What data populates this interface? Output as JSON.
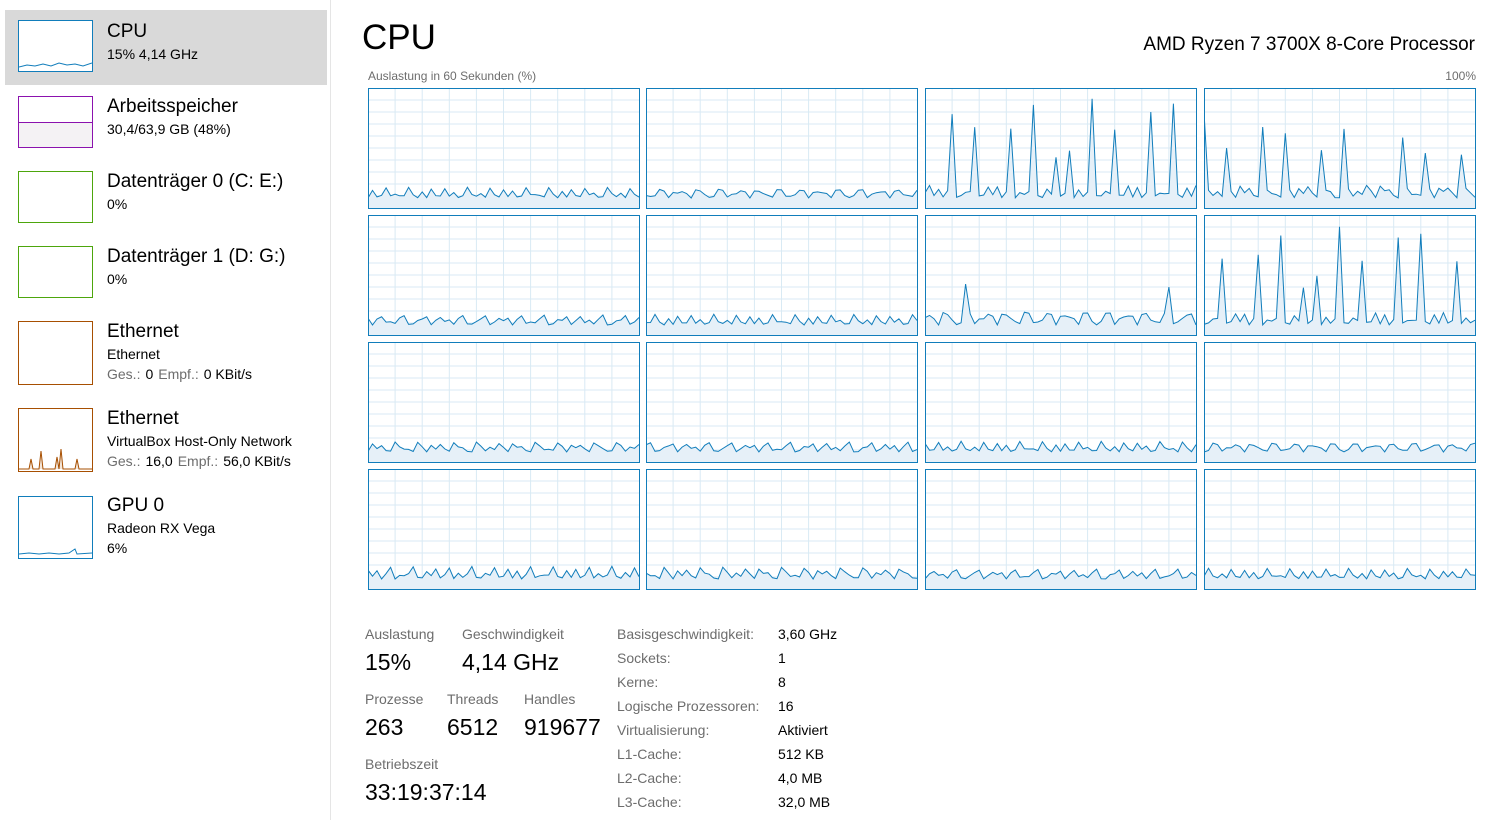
{
  "sidebar": [
    {
      "title": "CPU",
      "subtitle": "15% 4,14 GHz"
    },
    {
      "title": "Arbeitsspeicher",
      "subtitle": "30,4/63,9 GB (48%)"
    },
    {
      "title": "Datenträger 0 (C: E:)",
      "subtitle": "0%"
    },
    {
      "title": "Datenträger 1 (D: G:)",
      "subtitle": "0%"
    },
    {
      "title": "Ethernet",
      "subtitle": "Ethernet",
      "detail": [
        "Ges.:",
        "0",
        "Empf.:",
        "0 KBit/s"
      ]
    },
    {
      "title": "Ethernet",
      "subtitle": "VirtualBox Host-Only Network",
      "detail": [
        "Ges.:",
        "16,0",
        "Empf.:",
        "56,0 KBit/s"
      ]
    },
    {
      "title": "GPU 0",
      "subtitle": "Radeon RX Vega",
      "detail": [
        "6%"
      ]
    }
  ],
  "header": {
    "title": "CPU",
    "processor": "AMD Ryzen 7 3700X 8-Core Processor",
    "graph_label": "Auslastung in 60 Sekunden (%)",
    "graph_max": "100%"
  },
  "stats": [
    {
      "label": "Auslastung",
      "value": "15%"
    },
    {
      "label": "Geschwindigkeit",
      "value": "4,14 GHz"
    },
    {
      "label": "Prozesse",
      "value": "263"
    },
    {
      "label": "Threads",
      "value": "6512"
    },
    {
      "label": "Handles",
      "value": "919677"
    },
    {
      "label": "Betriebszeit",
      "value": "33:19:37:14"
    }
  ],
  "details": [
    {
      "label": "Basisgeschwindigkeit:",
      "value": "3,60 GHz"
    },
    {
      "label": "Sockets:",
      "value": "1"
    },
    {
      "label": "Kerne:",
      "value": "8"
    },
    {
      "label": "Logische Prozessoren:",
      "value": "16"
    },
    {
      "label": "Virtualisierung:",
      "value": "Aktiviert"
    },
    {
      "label": "L1-Cache:",
      "value": "512 KB"
    },
    {
      "label": "L2-Cache:",
      "value": "4,0 MB"
    },
    {
      "label": "L3-Cache:",
      "value": "32,0 MB"
    }
  ]
}
